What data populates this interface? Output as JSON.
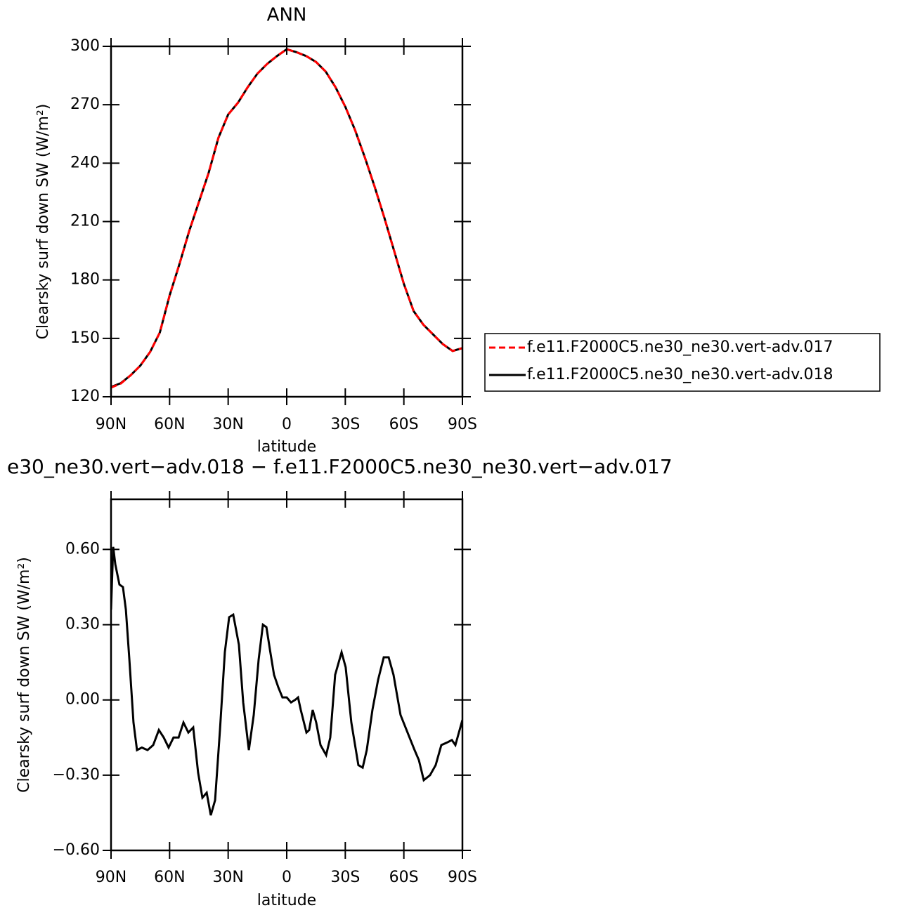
{
  "chart_data": [
    {
      "type": "line",
      "title": "ANN",
      "xlabel": "latitude",
      "ylabel": "Clearsky surf down SW (W/m²)",
      "x": [
        90,
        85,
        80,
        75,
        70,
        65,
        60,
        55,
        50,
        45,
        40,
        35,
        30,
        25,
        20,
        15,
        10,
        5,
        0,
        -5,
        -10,
        -15,
        -20,
        -25,
        -30,
        -35,
        -40,
        -45,
        -50,
        -55,
        -60,
        -65,
        -70,
        -75,
        -80,
        -85,
        -90
      ],
      "series": [
        {
          "name": "f.e11.F2000C5.ne30_ne30.vert-adv.017",
          "color": "#ff0000",
          "dash": "dashed",
          "values": [
            124.7,
            126.8,
            131,
            136,
            143,
            153,
            172,
            188,
            205,
            220,
            235,
            253,
            265,
            271,
            279,
            286,
            291,
            295,
            298.5,
            297,
            295,
            292,
            287,
            279,
            269,
            257,
            243,
            228,
            212,
            195,
            178,
            164,
            157,
            152,
            147,
            143.5,
            145
          ]
        },
        {
          "name": "f.e11.F2000C5.ne30_ne30.vert-adv.018",
          "color": "#000000",
          "dash": "solid",
          "values": [
            125,
            127,
            131,
            136,
            143,
            153,
            172,
            188,
            205,
            220,
            235,
            253,
            265,
            271,
            279,
            286,
            291,
            295,
            298.5,
            297,
            295,
            292,
            287,
            279,
            269,
            257,
            243,
            228,
            212,
            195,
            178,
            164,
            157,
            152,
            147,
            143.5,
            145
          ]
        }
      ],
      "xlim": [
        90,
        -90
      ],
      "xticks": [
        {
          "value": 90,
          "label": "90N"
        },
        {
          "value": 60,
          "label": "60N"
        },
        {
          "value": 30,
          "label": "30N"
        },
        0,
        {
          "value": -30,
          "label": "30S"
        },
        {
          "value": -60,
          "label": "60S"
        },
        {
          "value": -90,
          "label": "90S"
        }
      ],
      "ylim": [
        120,
        300
      ],
      "yticks": [
        120,
        150,
        180,
        210,
        240,
        270,
        300
      ],
      "legend": "outside-right"
    },
    {
      "type": "line",
      "title": "e30_ne30.vert−adv.018 − f.e11.F2000C5.ne30_ne30.vert−adv.017",
      "xlabel": "latitude",
      "ylabel": "Clearsky surf down SW (W/m²)",
      "x": [
        90,
        88.9,
        87.8,
        85.7,
        83.9,
        82.4,
        80.6,
        78.5,
        76.7,
        74.2,
        71.3,
        68.4,
        65.5,
        63,
        60.5,
        58,
        55.4,
        52.9,
        50.4,
        47.9,
        45.4,
        43.2,
        41,
        38.9,
        36.7,
        34.2,
        31.7,
        29.5,
        27.4,
        24.5,
        22.3,
        19.4,
        16.9,
        14.4,
        12.2,
        10.4,
        8.6,
        6.5,
        4.3,
        2.2,
        0,
        -2.2,
        -4.3,
        -5.8,
        -7.2,
        -10.1,
        -11.5,
        -13.3,
        -15.1,
        -17.3,
        -20.2,
        -22.3,
        -24.8,
        -28.1,
        -30.2,
        -33.1,
        -36.7,
        -38.9,
        -41,
        -43.9,
        -46.8,
        -49.7,
        -52.2,
        -54.7,
        -58.3,
        -61.9,
        -65.5,
        -67.7,
        -70.2,
        -73.4,
        -76.3,
        -79.2,
        -82.1,
        -84.6,
        -86.4,
        -88.2,
        -90
      ],
      "values": [
        0.36,
        0.61,
        0.54,
        0.46,
        0.45,
        0.36,
        0.16,
        -0.09,
        -0.2,
        -0.19,
        -0.2,
        -0.18,
        -0.12,
        -0.15,
        -0.19,
        -0.15,
        -0.15,
        -0.09,
        -0.13,
        -0.11,
        -0.29,
        -0.39,
        -0.37,
        -0.46,
        -0.4,
        -0.12,
        0.19,
        0.33,
        0.34,
        0.22,
        -0.01,
        -0.2,
        -0.06,
        0.16,
        0.3,
        0.29,
        0.2,
        0.1,
        0.05,
        0.01,
        0.01,
        -0.01,
        0,
        0.01,
        -0.04,
        -0.13,
        -0.12,
        -0.04,
        -0.09,
        -0.18,
        -0.22,
        -0.15,
        0.1,
        0.19,
        0.13,
        -0.09,
        -0.26,
        -0.27,
        -0.2,
        -0.04,
        0.08,
        0.17,
        0.17,
        0.1,
        -0.06,
        -0.13,
        -0.2,
        -0.24,
        -0.32,
        -0.3,
        -0.26,
        -0.18,
        -0.17,
        -0.16,
        -0.18,
        -0.13,
        -0.08
      ],
      "color": "#000000",
      "xlim": [
        90,
        -90
      ],
      "xticks": [
        {
          "value": 90,
          "label": "90N"
        },
        {
          "value": 60,
          "label": "60N"
        },
        {
          "value": 30,
          "label": "30N"
        },
        0,
        {
          "value": -30,
          "label": "30S"
        },
        {
          "value": -60,
          "label": "60S"
        },
        {
          "value": -90,
          "label": "90S"
        }
      ],
      "ylim": [
        -0.6,
        0.8
      ],
      "yticks": [
        {
          "value": -0.6,
          "label": "−0.60"
        },
        {
          "value": -0.3,
          "label": "−0.30"
        },
        {
          "value": 0,
          "label": "0.00"
        },
        {
          "value": 0.3,
          "label": "0.30"
        },
        {
          "value": 0.6,
          "label": "0.60"
        }
      ]
    }
  ]
}
